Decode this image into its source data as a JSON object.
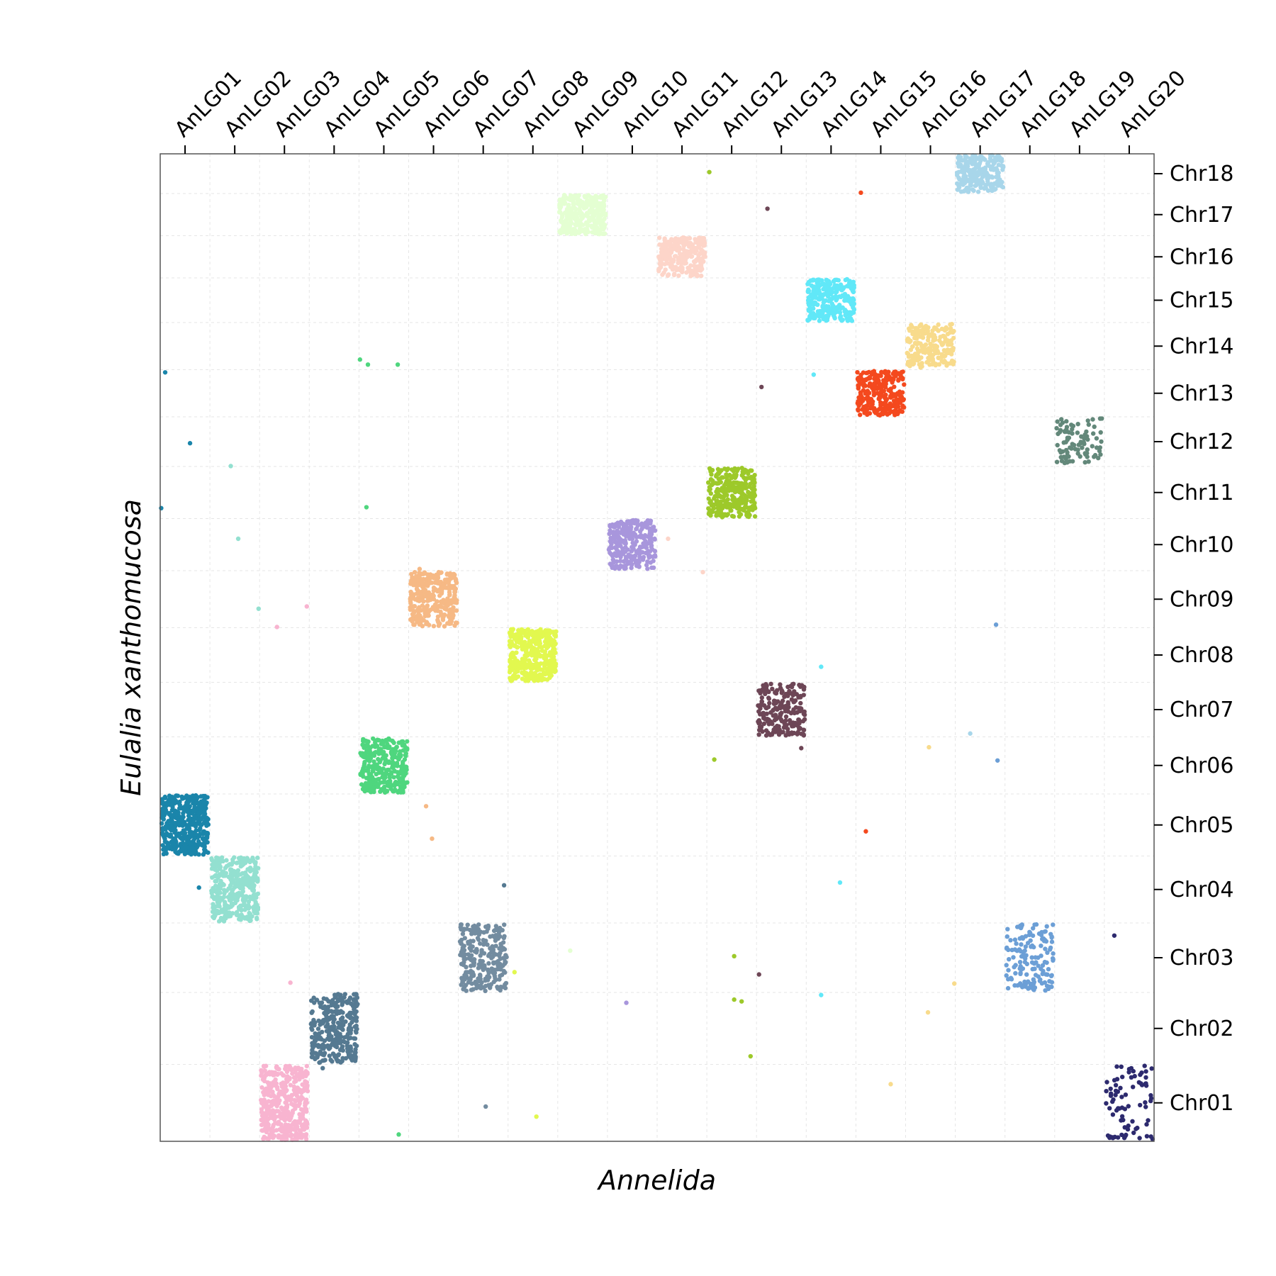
{
  "chart_data": {
    "type": "scatter",
    "title": "",
    "xlabel": "Annelida",
    "ylabel": "Eulalia xanthomucosa",
    "x_categories": [
      "AnLG01",
      "AnLG02",
      "AnLG03",
      "AnLG04",
      "AnLG05",
      "AnLG06",
      "AnLG07",
      "AnLG08",
      "AnLG09",
      "AnLG10",
      "AnLG11",
      "AnLG12",
      "AnLG13",
      "AnLG14",
      "AnLG15",
      "AnLG16",
      "AnLG17",
      "AnLG18",
      "AnLG19",
      "AnLG20"
    ],
    "x_sizes": [
      1,
      1,
      1,
      1,
      1,
      1,
      1,
      1,
      1,
      1,
      1,
      1,
      1,
      1,
      1,
      1,
      1,
      1,
      1,
      1
    ],
    "y_categories": [
      "Chr01",
      "Chr02",
      "Chr03",
      "Chr04",
      "Chr05",
      "Chr06",
      "Chr07",
      "Chr08",
      "Chr09",
      "Chr10",
      "Chr11",
      "Chr12",
      "Chr13",
      "Chr14",
      "Chr15",
      "Chr16",
      "Chr17",
      "Chr18"
    ],
    "y_sizes": [
      1.55,
      1.45,
      1.4,
      1.35,
      1.25,
      1.15,
      1.1,
      1.1,
      1.15,
      1.05,
      1.05,
      1.0,
      0.95,
      0.95,
      0.9,
      0.85,
      0.85,
      0.8
    ],
    "grid": true,
    "x_axis_position": "top",
    "y_axis_position": "right",
    "blocks": [
      {
        "x": "AnLG01",
        "y": "Chr05",
        "color": "#1a85aa",
        "count": 420
      },
      {
        "x": "AnLG02",
        "y": "Chr04",
        "color": "#93e0d0",
        "count": 380
      },
      {
        "x": "AnLG03",
        "y": "Chr01",
        "color": "#f8b4d0",
        "count": 420
      },
      {
        "x": "AnLG04",
        "y": "Chr02",
        "color": "#557991",
        "count": 300
      },
      {
        "x": "AnLG05",
        "y": "Chr06",
        "color": "#4fd67e",
        "count": 320
      },
      {
        "x": "AnLG06",
        "y": "Chr09",
        "color": "#f6b985",
        "count": 320
      },
      {
        "x": "AnLG07",
        "y": "Chr03",
        "color": "#738ca0",
        "count": 260
      },
      {
        "x": "AnLG08",
        "y": "Chr08",
        "color": "#e2f84f",
        "count": 380
      },
      {
        "x": "AnLG09",
        "y": "Chr17",
        "color": "#e4ffd2",
        "count": 300
      },
      {
        "x": "AnLG10",
        "y": "Chr10",
        "color": "#a896dc",
        "count": 260
      },
      {
        "x": "AnLG11",
        "y": "Chr16",
        "color": "#fdd5c9",
        "count": 260
      },
      {
        "x": "AnLG12",
        "y": "Chr11",
        "color": "#9dc92a",
        "count": 300
      },
      {
        "x": "AnLG13",
        "y": "Chr07",
        "color": "#6d4656",
        "count": 220
      },
      {
        "x": "AnLG14",
        "y": "Chr15",
        "color": "#61e8f8",
        "count": 260
      },
      {
        "x": "AnLG15",
        "y": "Chr13",
        "color": "#f4491e",
        "count": 260
      },
      {
        "x": "AnLG16",
        "y": "Chr14",
        "color": "#f8db8c",
        "count": 220
      },
      {
        "x": "AnLG17",
        "y": "Chr18",
        "color": "#a8d6ea",
        "count": 240
      },
      {
        "x": "AnLG18",
        "y": "Chr03",
        "color": "#6c9fd6",
        "count": 150
      },
      {
        "x": "AnLG19",
        "y": "Chr12",
        "color": "#63887a",
        "count": 90
      },
      {
        "x": "AnLG20",
        "y": "Chr01",
        "color": "#2d2a6e",
        "count": 80
      }
    ],
    "outliers": [
      {
        "x_pos": 0.1,
        "y_pos": 16.82,
        "color": "#1a85aa"
      },
      {
        "x_pos": 0.6,
        "y_pos": 15.27,
        "color": "#1a85aa"
      },
      {
        "x_pos": 0.02,
        "y_pos": 13.85,
        "color": "#1a85aa"
      },
      {
        "x_pos": 0.78,
        "y_pos": 5.55,
        "color": "#1a85aa"
      },
      {
        "x_pos": 1.42,
        "y_pos": 14.77,
        "color": "#93e0d0"
      },
      {
        "x_pos": 1.57,
        "y_pos": 13.18,
        "color": "#93e0d0"
      },
      {
        "x_pos": 1.98,
        "y_pos": 11.65,
        "color": "#93e0d0"
      },
      {
        "x_pos": 2.35,
        "y_pos": 11.25,
        "color": "#f8b4d0"
      },
      {
        "x_pos": 2.95,
        "y_pos": 11.7,
        "color": "#f8b4d0"
      },
      {
        "x_pos": 2.62,
        "y_pos": 3.47,
        "color": "#f8b4d0"
      },
      {
        "x_pos": 3.27,
        "y_pos": 1.6,
        "color": "#557991"
      },
      {
        "x_pos": 6.92,
        "y_pos": 5.6,
        "color": "#557991"
      },
      {
        "x_pos": 4.02,
        "y_pos": 17.1,
        "color": "#4fd67e"
      },
      {
        "x_pos": 4.18,
        "y_pos": 16.99,
        "color": "#4fd67e"
      },
      {
        "x_pos": 4.78,
        "y_pos": 16.99,
        "color": "#4fd67e"
      },
      {
        "x_pos": 4.15,
        "y_pos": 13.87,
        "color": "#4fd67e"
      },
      {
        "x_pos": 4.8,
        "y_pos": 0.15,
        "color": "#4fd67e"
      },
      {
        "x_pos": 5.22,
        "y_pos": 12.52,
        "color": "#f6b985"
      },
      {
        "x_pos": 5.35,
        "y_pos": 7.33,
        "color": "#f6b985"
      },
      {
        "x_pos": 5.47,
        "y_pos": 6.62,
        "color": "#f6b985"
      },
      {
        "x_pos": 6.55,
        "y_pos": 0.76,
        "color": "#738ca0"
      },
      {
        "x_pos": 7.13,
        "y_pos": 3.7,
        "color": "#e2f84f"
      },
      {
        "x_pos": 7.57,
        "y_pos": 0.54,
        "color": "#e2f84f"
      },
      {
        "x_pos": 8.25,
        "y_pos": 4.17,
        "color": "#e4ffd2"
      },
      {
        "x_pos": 9.05,
        "y_pos": 12.87,
        "color": "#a896dc"
      },
      {
        "x_pos": 9.38,
        "y_pos": 3.03,
        "color": "#a896dc"
      },
      {
        "x_pos": 10.22,
        "y_pos": 13.18,
        "color": "#fdd5c9"
      },
      {
        "x_pos": 10.92,
        "y_pos": 12.45,
        "color": "#fdd5c9"
      },
      {
        "x_pos": 11.05,
        "y_pos": 21.2,
        "color": "#9dc92a"
      },
      {
        "x_pos": 11.45,
        "y_pos": 13.87,
        "color": "#9dc92a"
      },
      {
        "x_pos": 11.15,
        "y_pos": 8.35,
        "color": "#9dc92a"
      },
      {
        "x_pos": 11.55,
        "y_pos": 4.05,
        "color": "#9dc92a"
      },
      {
        "x_pos": 11.55,
        "y_pos": 3.1,
        "color": "#9dc92a"
      },
      {
        "x_pos": 11.7,
        "y_pos": 3.06,
        "color": "#9dc92a"
      },
      {
        "x_pos": 11.88,
        "y_pos": 1.86,
        "color": "#9dc92a"
      },
      {
        "x_pos": 12.22,
        "y_pos": 20.4,
        "color": "#6d4656"
      },
      {
        "x_pos": 12.1,
        "y_pos": 16.5,
        "color": "#6d4656"
      },
      {
        "x_pos": 12.9,
        "y_pos": 8.6,
        "color": "#6d4656"
      },
      {
        "x_pos": 12.05,
        "y_pos": 3.65,
        "color": "#6d4656"
      },
      {
        "x_pos": 13.15,
        "y_pos": 16.77,
        "color": "#61e8f8"
      },
      {
        "x_pos": 13.3,
        "y_pos": 10.38,
        "color": "#61e8f8"
      },
      {
        "x_pos": 13.68,
        "y_pos": 5.66,
        "color": "#61e8f8"
      },
      {
        "x_pos": 13.3,
        "y_pos": 3.2,
        "color": "#61e8f8"
      },
      {
        "x_pos": 14.1,
        "y_pos": 20.75,
        "color": "#f4491e"
      },
      {
        "x_pos": 14.2,
        "y_pos": 6.78,
        "color": "#f4491e"
      },
      {
        "x_pos": 15.47,
        "y_pos": 8.62,
        "color": "#f8db8c"
      },
      {
        "x_pos": 15.98,
        "y_pos": 3.45,
        "color": "#f8db8c"
      },
      {
        "x_pos": 14.7,
        "y_pos": 1.25,
        "color": "#f8db8c"
      },
      {
        "x_pos": 15.45,
        "y_pos": 2.82,
        "color": "#f8db8c"
      },
      {
        "x_pos": 16.3,
        "y_pos": 8.92,
        "color": "#a8d6ea"
      },
      {
        "x_pos": 16.82,
        "y_pos": 11.3,
        "color": "#6c9fd6"
      },
      {
        "x_pos": 16.85,
        "y_pos": 8.33,
        "color": "#6c9fd6"
      },
      {
        "x_pos": 19.2,
        "y_pos": 4.5,
        "color": "#2d2a6e"
      }
    ]
  }
}
